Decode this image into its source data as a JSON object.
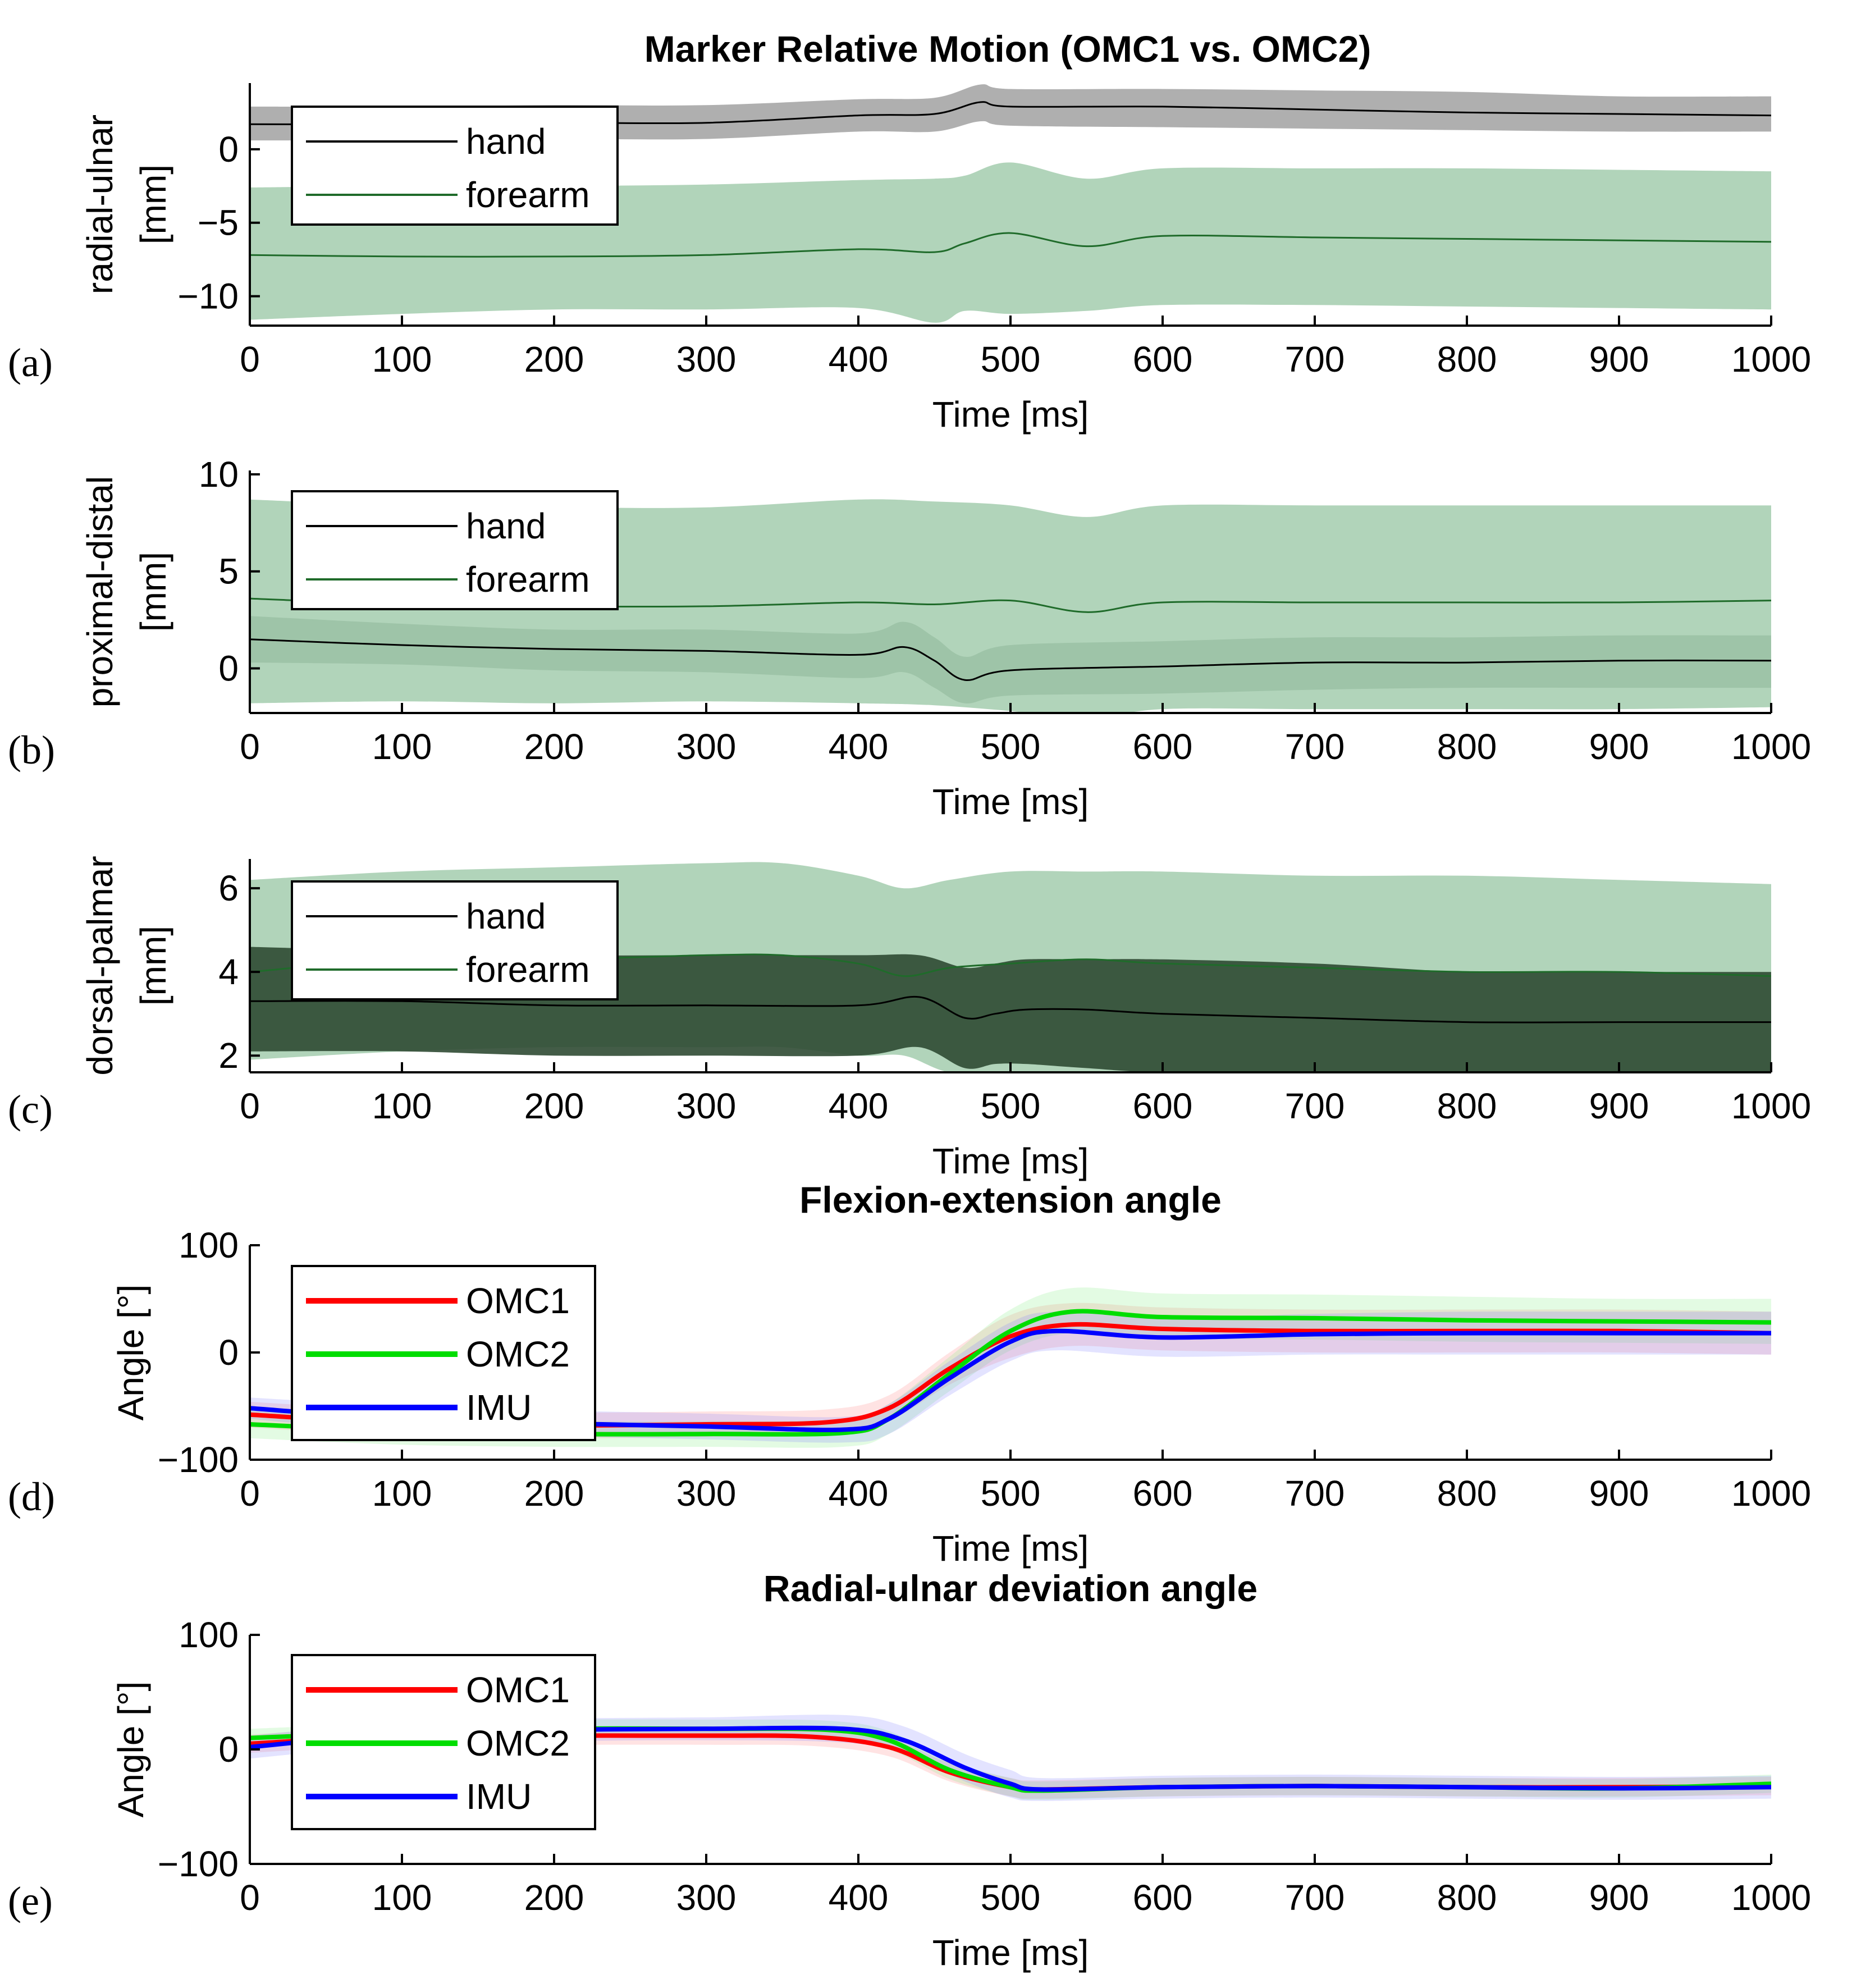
{
  "figure": {
    "main_title": "Marker Relative Motion (OMC1 vs. OMC2)"
  },
  "chart_data": [
    {
      "type": "line",
      "panel_label": "(a)",
      "title": "",
      "xlabel": "Time [ms]",
      "ylabel": [
        "radial-ulnar",
        "[mm]"
      ],
      "xlim": [
        0,
        1000
      ],
      "ylim": [
        -12,
        4.5
      ],
      "xticks": [
        0,
        100,
        200,
        300,
        400,
        500,
        600,
        700,
        800,
        900,
        1000
      ],
      "yticks": [
        -10,
        -5,
        0
      ],
      "legend": "top-left",
      "series": [
        {
          "name": "hand",
          "color": "#000000",
          "band_color": "#a6a6a6",
          "line_width": 3,
          "x": [
            0,
            100,
            200,
            300,
            400,
            450,
            480,
            500,
            600,
            700,
            800,
            900,
            1000
          ],
          "mean": [
            1.7,
            1.7,
            1.8,
            1.8,
            2.3,
            2.4,
            3.2,
            2.9,
            2.9,
            2.7,
            2.5,
            2.4,
            2.3
          ],
          "lower": [
            0.6,
            0.6,
            0.7,
            0.7,
            1.2,
            1.2,
            1.9,
            1.6,
            1.5,
            1.4,
            1.3,
            1.2,
            1.2
          ],
          "upper": [
            2.9,
            2.9,
            3.0,
            3.0,
            3.4,
            3.5,
            4.4,
            4.1,
            4.1,
            4.0,
            3.9,
            3.6,
            3.6
          ]
        },
        {
          "name": "forearm",
          "color": "#1f6b2a",
          "band_color": "#a9cfb2",
          "line_width": 3,
          "x": [
            0,
            100,
            200,
            300,
            400,
            450,
            470,
            500,
            550,
            600,
            700,
            800,
            900,
            1000
          ],
          "mean": [
            -7.2,
            -7.3,
            -7.3,
            -7.2,
            -6.8,
            -7.0,
            -6.4,
            -5.7,
            -6.6,
            -5.9,
            -6.0,
            -6.1,
            -6.2,
            -6.3
          ],
          "lower": [
            -11.6,
            -11.2,
            -10.9,
            -10.9,
            -10.8,
            -11.8,
            -11.0,
            -11.2,
            -11.0,
            -10.6,
            -10.6,
            -10.7,
            -10.8,
            -10.9
          ],
          "upper": [
            -2.6,
            -2.5,
            -2.5,
            -2.4,
            -2.1,
            -2.0,
            -1.8,
            -0.9,
            -2.0,
            -1.3,
            -1.3,
            -1.3,
            -1.4,
            -1.5
          ]
        }
      ]
    },
    {
      "type": "line",
      "panel_label": "(b)",
      "title": "",
      "xlabel": "Time [ms]",
      "ylabel": [
        "proximal-distal",
        "[mm]"
      ],
      "xlim": [
        0,
        1000
      ],
      "ylim": [
        -2.3,
        10.2
      ],
      "xticks": [
        0,
        100,
        200,
        300,
        400,
        500,
        600,
        700,
        800,
        900,
        1000
      ],
      "yticks": [
        0,
        5,
        10
      ],
      "legend": "top-left",
      "series": [
        {
          "name": "hand",
          "color": "#000000",
          "band_color": "#2f4a33",
          "line_width": 3,
          "x": [
            0,
            100,
            200,
            300,
            400,
            430,
            450,
            470,
            500,
            600,
            700,
            800,
            900,
            1000
          ],
          "mean": [
            1.5,
            1.2,
            1.0,
            0.9,
            0.7,
            1.1,
            0.4,
            -0.6,
            -0.1,
            0.1,
            0.3,
            0.3,
            0.4,
            0.4
          ],
          "lower": [
            0.3,
            0.2,
            -0.1,
            -0.2,
            -0.5,
            -0.2,
            -1.0,
            -1.8,
            -1.4,
            -1.3,
            -1.1,
            -1.0,
            -1.0,
            -1.0
          ],
          "upper": [
            2.7,
            2.3,
            2.0,
            2.0,
            1.8,
            2.4,
            1.6,
            0.6,
            1.2,
            1.4,
            1.6,
            1.6,
            1.7,
            1.7
          ]
        },
        {
          "name": "forearm",
          "color": "#1f6b2a",
          "band_color": "#a9cfb2",
          "line_width": 3,
          "x": [
            0,
            100,
            200,
            300,
            400,
            450,
            500,
            550,
            600,
            700,
            800,
            900,
            1000
          ],
          "mean": [
            3.6,
            3.3,
            3.2,
            3.2,
            3.4,
            3.3,
            3.5,
            2.9,
            3.4,
            3.4,
            3.4,
            3.4,
            3.5
          ],
          "lower": [
            -1.8,
            -1.7,
            -1.8,
            -1.7,
            -1.8,
            -1.9,
            -2.2,
            -2.6,
            -2.1,
            -2.1,
            -2.1,
            -2.1,
            -2.0
          ],
          "upper": [
            8.7,
            8.4,
            8.3,
            8.3,
            8.7,
            8.6,
            8.4,
            7.8,
            8.4,
            8.4,
            8.4,
            8.4,
            8.4
          ]
        }
      ]
    },
    {
      "type": "line",
      "panel_label": "(c)",
      "title": "",
      "xlabel": "Time [ms]",
      "ylabel": [
        "dorsal-palmar",
        "[mm]"
      ],
      "xlim": [
        0,
        1000
      ],
      "ylim": [
        1.6,
        6.7
      ],
      "xticks": [
        0,
        100,
        200,
        300,
        400,
        500,
        600,
        700,
        800,
        900,
        1000
      ],
      "yticks": [
        2,
        4,
        6
      ],
      "legend": "top-left",
      "series": [
        {
          "name": "forearm",
          "color": "#1f6b2a",
          "band_color": "#a9cfb2",
          "line_width": 3,
          "x": [
            0,
            100,
            200,
            300,
            350,
            400,
            430,
            460,
            500,
            550,
            600,
            700,
            800,
            900,
            1000
          ],
          "mean": [
            4.0,
            4.3,
            4.3,
            4.4,
            4.4,
            4.2,
            3.9,
            4.1,
            4.2,
            4.3,
            4.2,
            4.1,
            4.0,
            4.0,
            3.9
          ],
          "lower": [
            1.9,
            2.1,
            2.2,
            2.2,
            2.2,
            2.0,
            2.0,
            1.6,
            1.6,
            1.6,
            1.6,
            1.6,
            1.6,
            1.6,
            1.6
          ],
          "upper": [
            6.2,
            6.4,
            6.5,
            6.6,
            6.6,
            6.3,
            6.0,
            6.2,
            6.4,
            6.4,
            6.4,
            6.3,
            6.3,
            6.2,
            6.1
          ]
        },
        {
          "name": "hand",
          "color": "#000000",
          "band_color": "#2f4a33",
          "line_width": 3,
          "x": [
            0,
            100,
            200,
            300,
            400,
            440,
            470,
            490,
            510,
            550,
            600,
            700,
            800,
            900,
            1000
          ],
          "mean": [
            3.3,
            3.3,
            3.2,
            3.2,
            3.2,
            3.4,
            2.9,
            3.0,
            3.1,
            3.1,
            3.0,
            2.9,
            2.8,
            2.8,
            2.8
          ],
          "lower": [
            2.1,
            2.1,
            2.0,
            2.0,
            2.0,
            2.2,
            1.7,
            1.8,
            1.8,
            1.7,
            1.6,
            1.6,
            1.6,
            1.6,
            1.6
          ],
          "upper": [
            4.6,
            4.5,
            4.4,
            4.4,
            4.4,
            4.4,
            4.1,
            4.2,
            4.3,
            4.3,
            4.3,
            4.2,
            4.0,
            4.0,
            4.0
          ]
        }
      ]
    },
    {
      "type": "line",
      "panel_label": "(d)",
      "title": "Flexion-extension angle",
      "xlabel": "Time [ms]",
      "ylabel": [
        "Angle [°]"
      ],
      "xlim": [
        0,
        1000
      ],
      "ylim": [
        -100,
        100
      ],
      "xticks": [
        0,
        100,
        200,
        300,
        400,
        500,
        600,
        700,
        800,
        900,
        1000
      ],
      "yticks": [
        -100,
        0,
        100
      ],
      "legend": "top-left",
      "series": [
        {
          "name": "OMC1",
          "color": "#ff0000",
          "band_color": "#ff8080",
          "line_width": 8,
          "x": [
            0,
            100,
            200,
            300,
            380,
            420,
            460,
            500,
            540,
            600,
            700,
            800,
            900,
            1000
          ],
          "mean": [
            -58,
            -66,
            -68,
            -67,
            -65,
            -52,
            -15,
            15,
            26,
            22,
            20,
            20,
            20,
            18
          ],
          "lower": [
            -70,
            -78,
            -80,
            -79,
            -77,
            -64,
            -30,
            -5,
            6,
            2,
            0,
            0,
            0,
            -2
          ],
          "upper": [
            -46,
            -54,
            -56,
            -55,
            -53,
            -40,
            0,
            35,
            46,
            42,
            40,
            40,
            40,
            38
          ]
        },
        {
          "name": "OMC2",
          "color": "#00dd00",
          "band_color": "#80ee80",
          "line_width": 8,
          "x": [
            0,
            100,
            200,
            300,
            390,
            420,
            460,
            500,
            540,
            600,
            700,
            800,
            900,
            1000
          ],
          "mean": [
            -67,
            -73,
            -76,
            -76,
            -75,
            -62,
            -20,
            20,
            38,
            33,
            32,
            30,
            29,
            28
          ],
          "lower": [
            -80,
            -86,
            -88,
            -88,
            -88,
            -76,
            -36,
            2,
            18,
            13,
            12,
            10,
            9,
            8
          ],
          "upper": [
            -54,
            -60,
            -64,
            -64,
            -62,
            -48,
            -4,
            40,
            60,
            55,
            54,
            52,
            50,
            50
          ]
        },
        {
          "name": "IMU",
          "color": "#0000ff",
          "band_color": "#8080ff",
          "line_width": 8,
          "x": [
            0,
            100,
            200,
            300,
            390,
            420,
            460,
            500,
            530,
            600,
            700,
            800,
            900,
            1000
          ],
          "mean": [
            -52,
            -62,
            -66,
            -69,
            -72,
            -62,
            -24,
            10,
            20,
            14,
            17,
            18,
            18,
            18
          ],
          "lower": [
            -62,
            -74,
            -78,
            -81,
            -84,
            -76,
            -40,
            -8,
            2,
            -4,
            -2,
            -2,
            -2,
            -2
          ],
          "upper": [
            -42,
            -50,
            -54,
            -57,
            -60,
            -48,
            -8,
            28,
            38,
            32,
            36,
            38,
            38,
            38
          ]
        }
      ]
    },
    {
      "type": "line",
      "panel_label": "(e)",
      "title": "Radial-ulnar deviation angle",
      "xlabel": "Time [ms]",
      "ylabel": [
        "Angle [°]"
      ],
      "xlim": [
        0,
        1000
      ],
      "ylim": [
        -100,
        100
      ],
      "xticks": [
        0,
        100,
        200,
        300,
        400,
        500,
        600,
        700,
        800,
        900,
        1000
      ],
      "yticks": [
        -100,
        0,
        100
      ],
      "legend": "top-left",
      "series": [
        {
          "name": "OMC1",
          "color": "#ff0000",
          "band_color": "#ff8080",
          "line_width": 8,
          "x": [
            0,
            100,
            200,
            300,
            370,
            420,
            460,
            500,
            520,
            600,
            700,
            800,
            900,
            1000
          ],
          "mean": [
            5,
            12,
            12,
            12,
            11,
            2,
            -20,
            -33,
            -35,
            -33,
            -32,
            -33,
            -33,
            -32
          ],
          "lower": [
            -3,
            4,
            4,
            4,
            3,
            -6,
            -28,
            -41,
            -43,
            -41,
            -40,
            -41,
            -41,
            -40
          ],
          "upper": [
            13,
            20,
            20,
            20,
            19,
            10,
            -12,
            -25,
            -27,
            -25,
            -24,
            -25,
            -25,
            -24
          ]
        },
        {
          "name": "OMC2",
          "color": "#00dd00",
          "band_color": "#80ee80",
          "line_width": 8,
          "x": [
            0,
            100,
            200,
            300,
            380,
            420,
            460,
            500,
            520,
            600,
            700,
            800,
            900,
            1000
          ],
          "mean": [
            10,
            15,
            18,
            18,
            17,
            8,
            -18,
            -33,
            -36,
            -33,
            -32,
            -33,
            -34,
            -30
          ],
          "lower": [
            2,
            7,
            10,
            10,
            9,
            0,
            -26,
            -41,
            -44,
            -41,
            -40,
            -41,
            -42,
            -38
          ],
          "upper": [
            18,
            23,
            26,
            26,
            25,
            16,
            -10,
            -25,
            -28,
            -25,
            -24,
            -25,
            -26,
            -22
          ]
        },
        {
          "name": "IMU",
          "color": "#0000ff",
          "band_color": "#8080ff",
          "line_width": 8,
          "x": [
            0,
            100,
            200,
            300,
            390,
            430,
            470,
            500,
            520,
            600,
            700,
            800,
            900,
            1000
          ],
          "mean": [
            2,
            14,
            17,
            18,
            18,
            8,
            -16,
            -30,
            -35,
            -33,
            -32,
            -33,
            -34,
            -33
          ],
          "lower": [
            -8,
            4,
            7,
            8,
            6,
            -4,
            -28,
            -42,
            -45,
            -43,
            -42,
            -43,
            -44,
            -43
          ],
          "upper": [
            12,
            24,
            27,
            28,
            30,
            20,
            -4,
            -18,
            -25,
            -23,
            -22,
            -23,
            -24,
            -23
          ]
        }
      ]
    }
  ]
}
